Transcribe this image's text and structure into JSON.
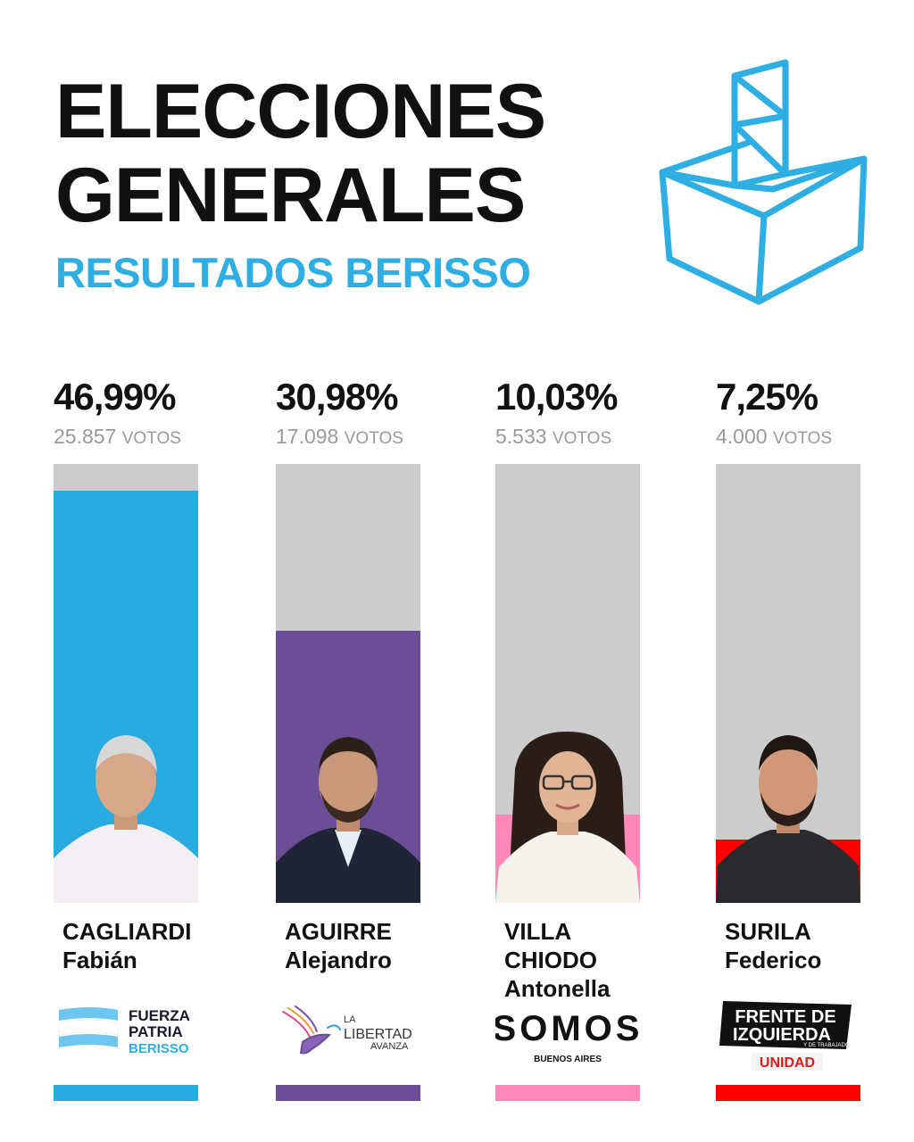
{
  "header": {
    "title_line1": "ELECCIONES",
    "title_line2": "GENERALES",
    "subtitle": "RESULTADOS BERISSO",
    "accent_color": "#2eaee3"
  },
  "candidates": [
    {
      "percent_label": "46,99%",
      "votes_number": "25.857",
      "votes_word": "VOTOS",
      "surname": "CAGLIARDI",
      "firstname": "Fabián",
      "firstname2": "",
      "party_line1": "FUERZA",
      "party_line2": "PATRIA",
      "party_line3": "BERISSO",
      "color": "#29abe2",
      "icon": "argentina-flag-icon"
    },
    {
      "percent_label": "30,98%",
      "votes_number": "17.098",
      "votes_word": "VOTOS",
      "surname": "AGUIRRE",
      "firstname": "Alejandro",
      "firstname2": "",
      "party_line1": "LA",
      "party_line2": "LIBERTAD",
      "party_line3": "AVANZA",
      "color": "#6b4e96",
      "icon": "eagle-icon"
    },
    {
      "percent_label": "10,03%",
      "votes_number": "5.533",
      "votes_word": "VOTOS",
      "surname": "VILLA",
      "firstname": "CHIODO",
      "firstname2": "Antonella",
      "party_line1": "SOMOS",
      "party_line2": "BUENOS AIRES",
      "party_line3": "",
      "color": "#ff88b8",
      "icon": "fingerprint-icon"
    },
    {
      "percent_label": "7,25%",
      "votes_number": "4.000",
      "votes_word": "VOTOS",
      "surname": "SURILA",
      "firstname": "Federico",
      "firstname2": "",
      "party_line1": "FRENTE DE",
      "party_line2": "IZQUIERDA",
      "party_line3": "UNIDAD",
      "party_line4": "Y DE TRABAJADORES",
      "color": "#ff0000",
      "icon": ""
    }
  ],
  "chart_data": {
    "type": "bar",
    "categories": [
      "CAGLIARDI Fabián",
      "AGUIRRE Alejandro",
      "VILLA CHIODO Antonella",
      "SURILA Federico"
    ],
    "values": [
      46.99,
      30.98,
      10.03,
      7.25
    ],
    "votes": [
      25857,
      17098,
      5533,
      4000
    ],
    "colors": [
      "#29abe2",
      "#6b4e96",
      "#ff88b8",
      "#ff0000"
    ],
    "title": "RESULTADOS BERISSO",
    "ylim": [
      0,
      50
    ],
    "grid": false,
    "legend": "none"
  }
}
